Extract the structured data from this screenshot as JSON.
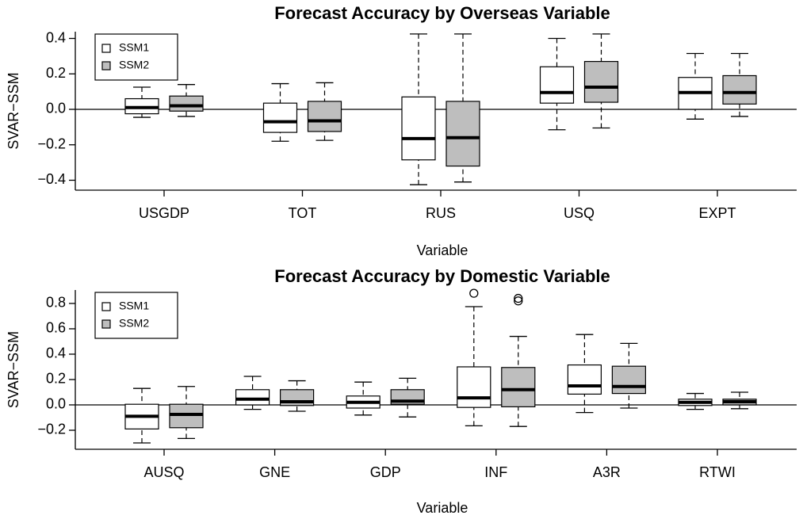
{
  "chart_data": [
    {
      "type": "boxplot",
      "title": "Forecast Accuracy by Overseas Variable",
      "x_label": "Variable",
      "y_label": "SVAR−SSM",
      "categories": [
        "USGDP",
        "TOT",
        "RUS",
        "USQ",
        "EXPT"
      ],
      "series": [
        {
          "name": "SSM1",
          "color": "#ffffff",
          "values": [
            [
              -0.045,
              -0.025,
              0.01,
              0.06,
              0.125
            ],
            [
              -0.18,
              -0.13,
              -0.07,
              0.035,
              0.145
            ],
            [
              -0.425,
              -0.285,
              -0.165,
              0.07,
              0.425
            ],
            [
              -0.115,
              0.035,
              0.095,
              0.24,
              0.4
            ],
            [
              -0.055,
              0.0,
              0.095,
              0.18,
              0.315
            ]
          ]
        },
        {
          "name": "SSM2",
          "color": "#bebebe",
          "values": [
            [
              -0.04,
              -0.01,
              0.02,
              0.075,
              0.14
            ],
            [
              -0.175,
              -0.125,
              -0.065,
              0.045,
              0.15
            ],
            [
              -0.41,
              -0.32,
              -0.16,
              0.045,
              0.425
            ],
            [
              -0.105,
              0.04,
              0.125,
              0.27,
              0.425
            ],
            [
              -0.04,
              0.03,
              0.095,
              0.19,
              0.315
            ]
          ]
        }
      ],
      "ylim": [
        -0.456,
        0.438
      ],
      "yticks": [
        {
          "value": -0.4,
          "label": "−0.4"
        },
        {
          "value": -0.2,
          "label": "−0.2"
        },
        {
          "value": 0,
          "label": "0.0"
        },
        {
          "value": 0.2,
          "label": "0.2"
        },
        {
          "value": 0.4,
          "label": "0.4"
        }
      ],
      "hline": 0,
      "legend": "top-left"
    },
    {
      "type": "boxplot",
      "title": "Forecast Accuracy by Domestic Variable",
      "x_label": "Variable",
      "y_label": "SVAR−SSM",
      "categories": [
        "AUSQ",
        "GNE",
        "GDP",
        "INF",
        "A3R",
        "RTWI"
      ],
      "series": [
        {
          "name": "SSM1",
          "color": "#ffffff",
          "values": [
            [
              -0.3,
              -0.19,
              -0.09,
              0.005,
              0.13
            ],
            [
              -0.035,
              0.0,
              0.045,
              0.12,
              0.225
            ],
            [
              -0.08,
              -0.025,
              0.02,
              0.07,
              0.18
            ],
            [
              -0.165,
              -0.02,
              0.055,
              0.3,
              0.775
            ],
            [
              -0.06,
              0.085,
              0.15,
              0.315,
              0.555
            ],
            [
              -0.035,
              -0.005,
              0.02,
              0.045,
              0.09
            ]
          ],
          "outliers": [
            [],
            [],
            [],
            [
              0.88
            ],
            [],
            []
          ]
        },
        {
          "name": "SSM2",
          "color": "#bebebe",
          "values": [
            [
              -0.265,
              -0.18,
              -0.075,
              0.005,
              0.145
            ],
            [
              -0.05,
              -0.005,
              0.025,
              0.12,
              0.19
            ],
            [
              -0.095,
              0.005,
              0.03,
              0.12,
              0.21
            ],
            [
              -0.17,
              -0.015,
              0.12,
              0.295,
              0.54
            ],
            [
              -0.025,
              0.09,
              0.145,
              0.305,
              0.485
            ],
            [
              -0.03,
              0.0,
              0.025,
              0.045,
              0.1
            ]
          ],
          "outliers": [
            [],
            [],
            [],
            [
              0.84,
              0.82
            ],
            [],
            []
          ]
        }
      ],
      "ylim": [
        -0.35,
        0.906
      ],
      "yticks": [
        {
          "value": -0.2,
          "label": "−0.2"
        },
        {
          "value": 0,
          "label": "0.0"
        },
        {
          "value": 0.2,
          "label": "0.2"
        },
        {
          "value": 0.4,
          "label": "0.4"
        },
        {
          "value": 0.6,
          "label": "0.6"
        },
        {
          "value": 0.8,
          "label": "0.8"
        }
      ],
      "hline": 0,
      "legend": "top-left"
    }
  ]
}
